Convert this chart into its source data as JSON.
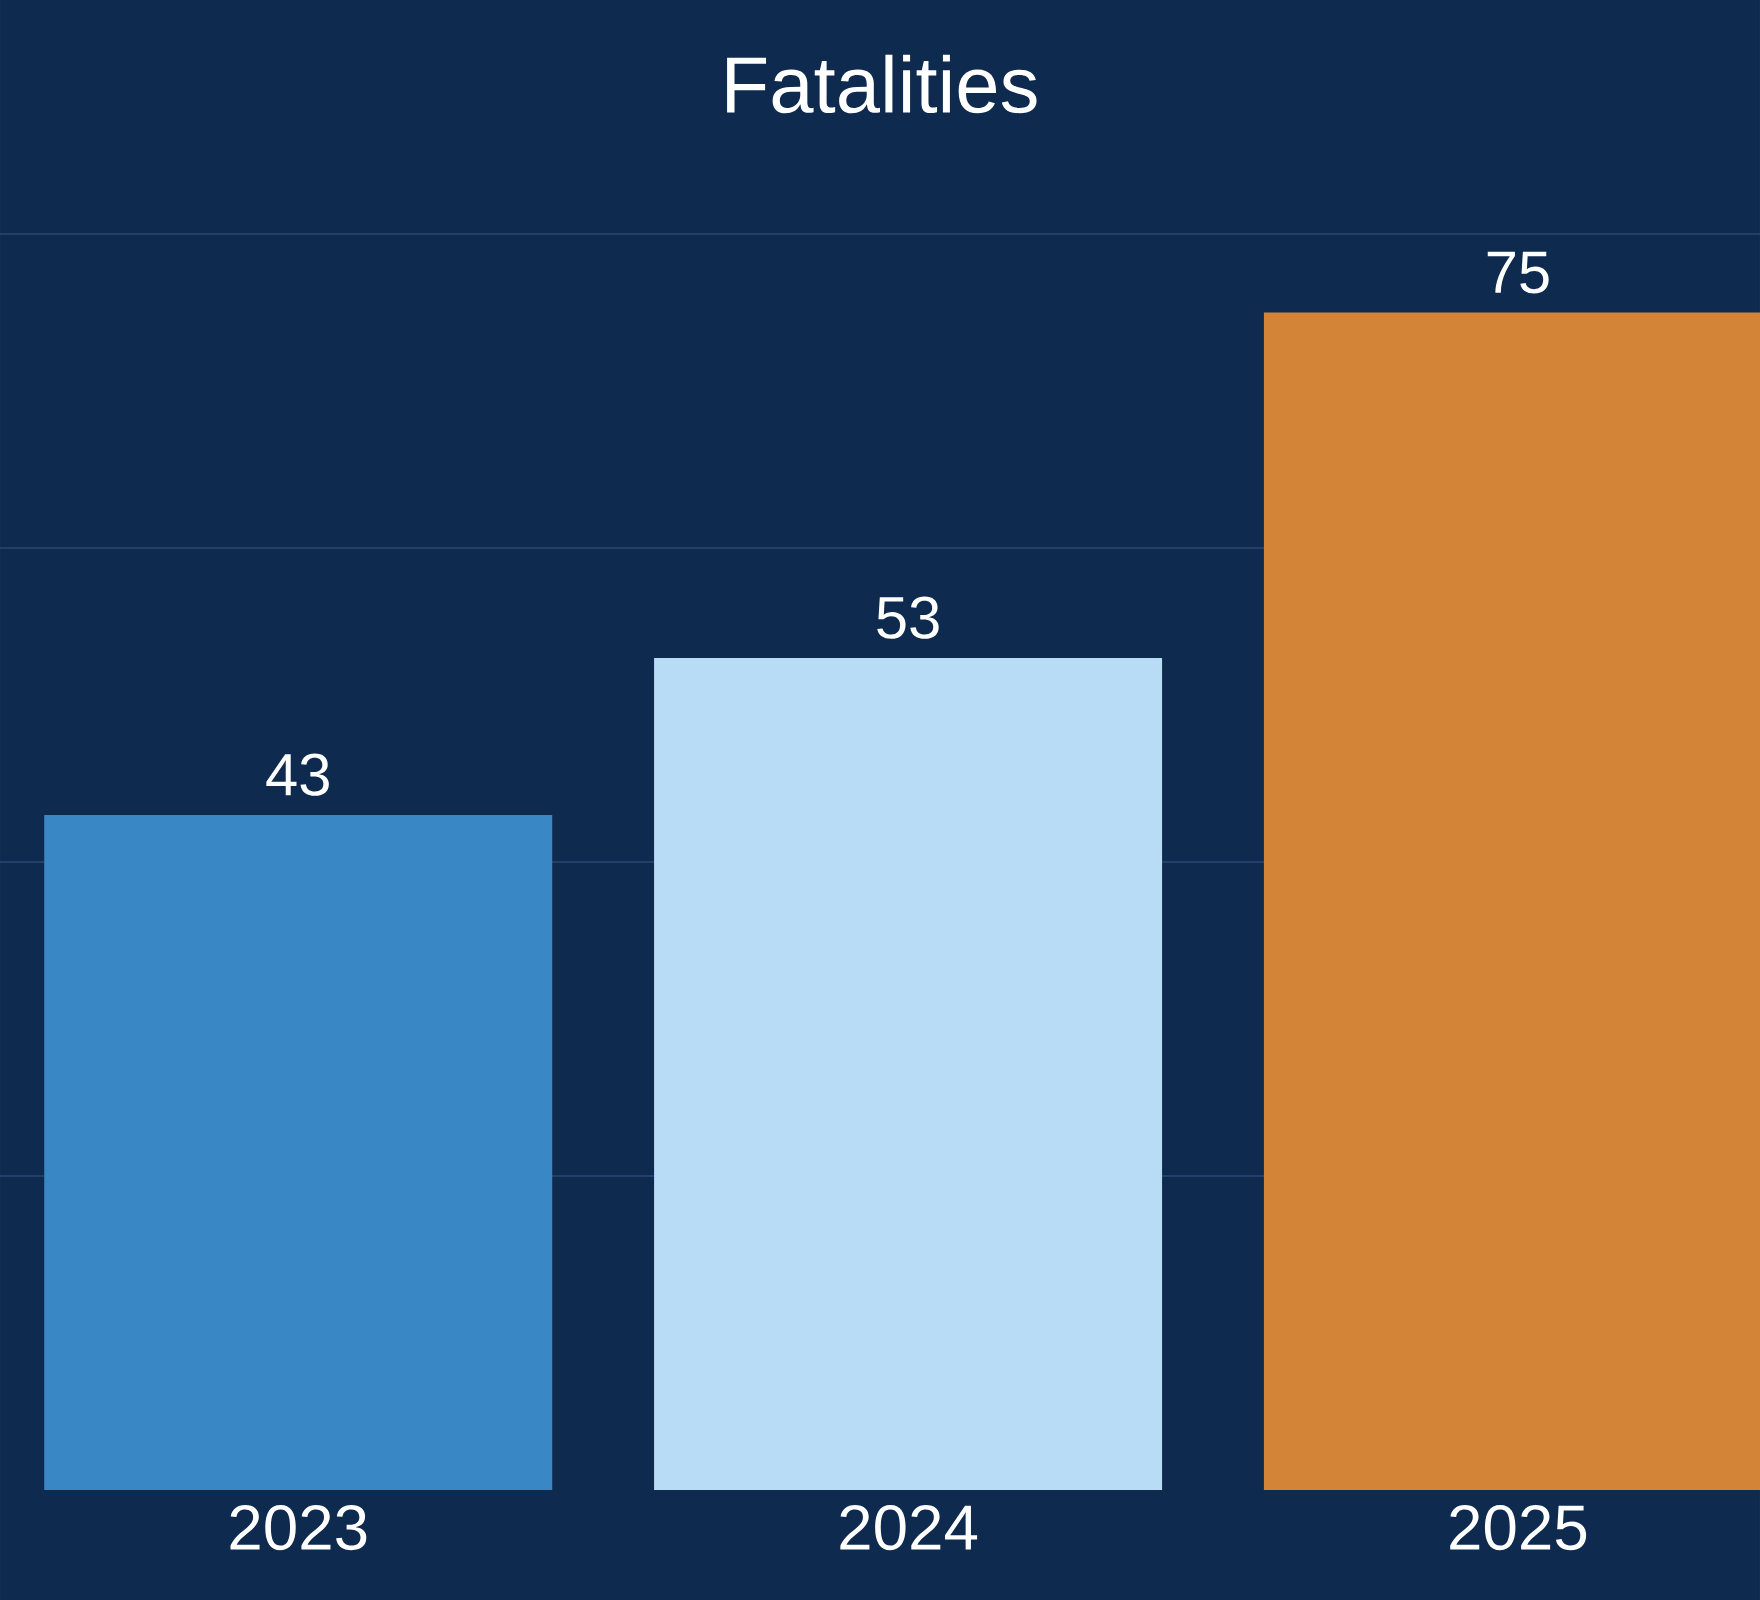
{
  "chart_data": {
    "type": "bar",
    "title": "Fatalities",
    "categories": [
      "2023",
      "2024",
      "2025"
    ],
    "values": [
      43,
      53,
      75
    ],
    "colors": [
      "#3a87c6",
      "#b8dcf6",
      "#d48436"
    ],
    "ylim": [
      0,
      80
    ],
    "yticks": [
      {
        "value": 20,
        "label": null
      },
      {
        "value": 40,
        "label": null
      },
      {
        "value": 60,
        "label": null
      },
      {
        "value": 80,
        "label": null
      }
    ],
    "grid": "y",
    "data_labels": true,
    "legend": false
  }
}
